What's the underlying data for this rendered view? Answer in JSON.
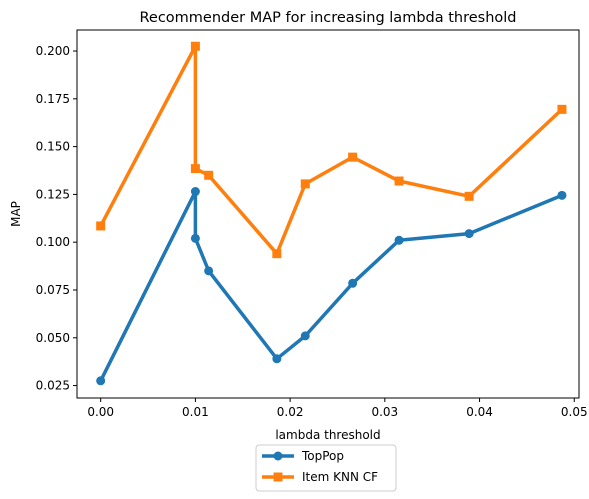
{
  "chart_data": {
    "type": "line",
    "title": "Recommender MAP for increasing lambda threshold",
    "xlabel": "lambda threshold",
    "ylabel": "MAP",
    "xlim": [
      -0.0025,
      0.0505
    ],
    "ylim": [
      0.0185,
      0.211
    ],
    "x_ticks": [
      0.0,
      0.01,
      0.02,
      0.03,
      0.04,
      0.05
    ],
    "x_tick_labels": [
      "0.00",
      "0.01",
      "0.02",
      "0.03",
      "0.04",
      "0.05"
    ],
    "y_ticks": [
      0.025,
      0.05,
      0.075,
      0.1,
      0.125,
      0.15,
      0.175,
      0.2
    ],
    "y_tick_labels": [
      "0.025",
      "0.050",
      "0.075",
      "0.100",
      "0.125",
      "0.150",
      "0.175",
      "0.200"
    ],
    "grid": false,
    "legend_position": "below",
    "series": [
      {
        "name": "TopPop",
        "color": "#1f77b4",
        "marker": "circle",
        "x": [
          0.0,
          0.01,
          0.01,
          0.0114,
          0.0186,
          0.0216,
          0.0266,
          0.0315,
          0.0389,
          0.0487
        ],
        "y": [
          0.0275,
          0.1265,
          0.102,
          0.085,
          0.039,
          0.051,
          0.0785,
          0.101,
          0.1045,
          0.1245
        ]
      },
      {
        "name": "Item KNN CF",
        "color": "#ff7f0e",
        "marker": "square",
        "x": [
          0.0,
          0.01,
          0.01,
          0.0114,
          0.0186,
          0.0216,
          0.0266,
          0.0315,
          0.0389,
          0.0487
        ],
        "y": [
          0.1085,
          0.2025,
          0.1385,
          0.135,
          0.094,
          0.1305,
          0.1445,
          0.132,
          0.124,
          0.1695
        ]
      }
    ]
  }
}
